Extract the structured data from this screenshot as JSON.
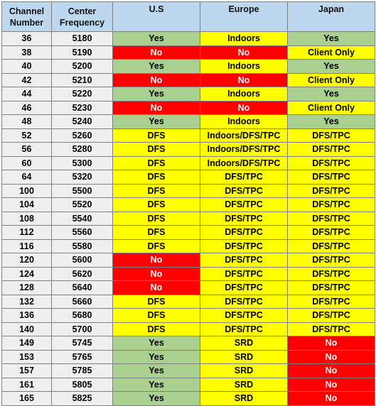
{
  "headers": [
    "Channel\nNumber",
    "Center\nFrequency",
    "U.S",
    "Europe",
    "Japan"
  ],
  "colors": {
    "green": "#a9d08e",
    "yellow": "#ffff00",
    "red": "#ff0000",
    "header": "#bdd7ee",
    "gray": "#efefef"
  },
  "rows": [
    {
      "channel": "36",
      "freq": "5180",
      "us": "Yes",
      "europe": "Indoors",
      "japan": "Yes"
    },
    {
      "channel": "38",
      "freq": "5190",
      "us": "No",
      "europe": "No",
      "japan": "Client Only"
    },
    {
      "channel": "40",
      "freq": "5200",
      "us": "Yes",
      "europe": "Indoors",
      "japan": "Yes"
    },
    {
      "channel": "42",
      "freq": "5210",
      "us": "No",
      "europe": "No",
      "japan": "Client Only"
    },
    {
      "channel": "44",
      "freq": "5220",
      "us": "Yes",
      "europe": "Indoors",
      "japan": "Yes"
    },
    {
      "channel": "46",
      "freq": "5230",
      "us": "No",
      "europe": "No",
      "japan": "Client Only"
    },
    {
      "channel": "48",
      "freq": "5240",
      "us": "Yes",
      "europe": "Indoors",
      "japan": "Yes"
    },
    {
      "channel": "52",
      "freq": "5260",
      "us": "DFS",
      "europe": "Indoors/DFS/TPC",
      "japan": "DFS/TPC"
    },
    {
      "channel": "56",
      "freq": "5280",
      "us": "DFS",
      "europe": "Indoors/DFS/TPC",
      "japan": "DFS/TPC"
    },
    {
      "channel": "60",
      "freq": "5300",
      "us": "DFS",
      "europe": "Indoors/DFS/TPC",
      "japan": "DFS/TPC"
    },
    {
      "channel": "64",
      "freq": "5320",
      "us": "DFS",
      "europe": "DFS/TPC",
      "japan": "DFS/TPC"
    },
    {
      "channel": "100",
      "freq": "5500",
      "us": "DFS",
      "europe": "DFS/TPC",
      "japan": "DFS/TPC"
    },
    {
      "channel": "104",
      "freq": "5520",
      "us": "DFS",
      "europe": "DFS/TPC",
      "japan": "DFS/TPC"
    },
    {
      "channel": "108",
      "freq": "5540",
      "us": "DFS",
      "europe": "DFS/TPC",
      "japan": "DFS/TPC"
    },
    {
      "channel": "112",
      "freq": "5560",
      "us": "DFS",
      "europe": "DFS/TPC",
      "japan": "DFS/TPC"
    },
    {
      "channel": "116",
      "freq": "5580",
      "us": "DFS",
      "europe": "DFS/TPC",
      "japan": "DFS/TPC"
    },
    {
      "channel": "120",
      "freq": "5600",
      "us": "No",
      "europe": "DFS/TPC",
      "japan": "DFS/TPC"
    },
    {
      "channel": "124",
      "freq": "5620",
      "us": "No",
      "europe": "DFS/TPC",
      "japan": "DFS/TPC"
    },
    {
      "channel": "128",
      "freq": "5640",
      "us": "No",
      "europe": "DFS/TPC",
      "japan": "DFS/TPC"
    },
    {
      "channel": "132",
      "freq": "5660",
      "us": "DFS",
      "europe": "DFS/TPC",
      "japan": "DFS/TPC"
    },
    {
      "channel": "136",
      "freq": "5680",
      "us": "DFS",
      "europe": "DFS/TPC",
      "japan": "DFS/TPC"
    },
    {
      "channel": "140",
      "freq": "5700",
      "us": "DFS",
      "europe": "DFS/TPC",
      "japan": "DFS/TPC"
    },
    {
      "channel": "149",
      "freq": "5745",
      "us": "Yes",
      "europe": "SRD",
      "japan": "No"
    },
    {
      "channel": "153",
      "freq": "5765",
      "us": "Yes",
      "europe": "SRD",
      "japan": "No"
    },
    {
      "channel": "157",
      "freq": "5785",
      "us": "Yes",
      "europe": "SRD",
      "japan": "No"
    },
    {
      "channel": "161",
      "freq": "5805",
      "us": "Yes",
      "europe": "SRD",
      "japan": "No"
    },
    {
      "channel": "165",
      "freq": "5825",
      "us": "Yes",
      "europe": "SRD",
      "japan": "No"
    }
  ]
}
